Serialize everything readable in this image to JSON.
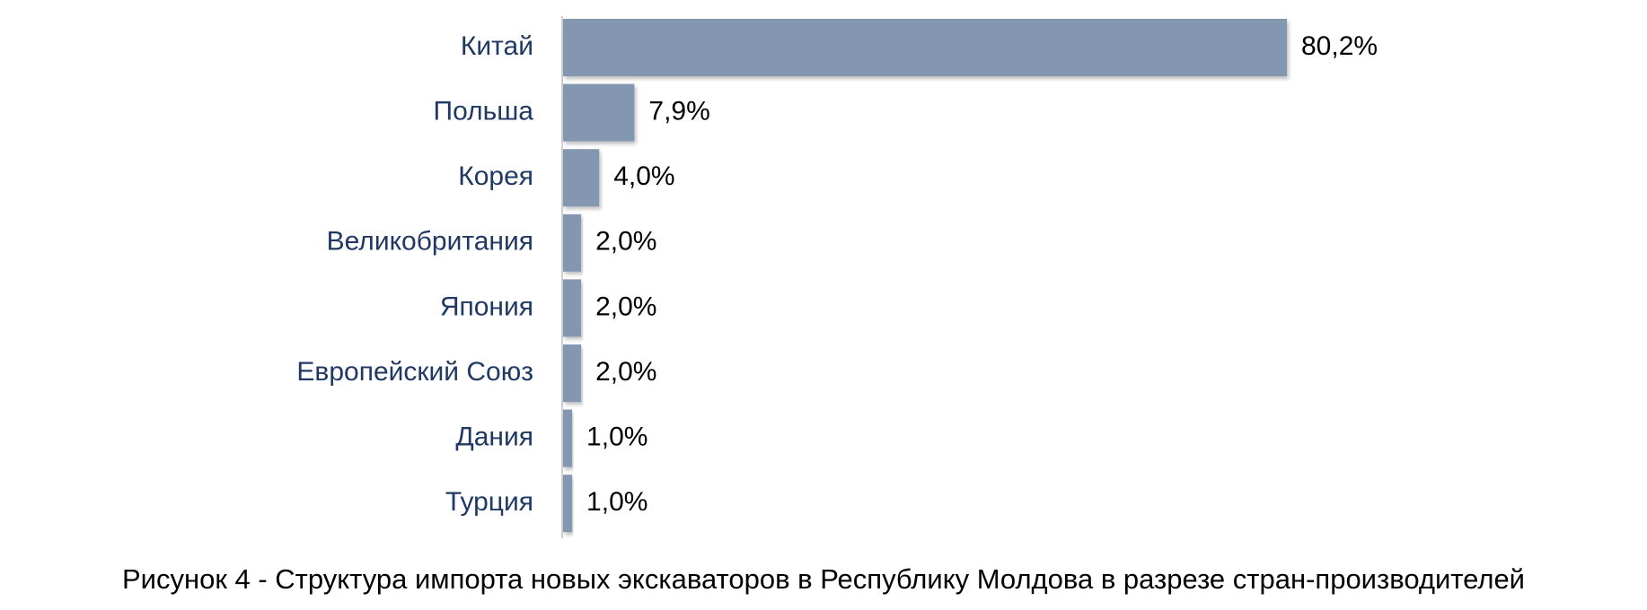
{
  "chart_data": {
    "type": "bar",
    "orientation": "horizontal",
    "categories": [
      "Китай",
      "Польша",
      "Корея",
      "Великобритания",
      "Япония",
      "Европейский Союз",
      "Дания",
      "Турция"
    ],
    "values": [
      80.2,
      7.9,
      4.0,
      2.0,
      2.0,
      2.0,
      1.0,
      1.0
    ],
    "value_labels": [
      "80,2%",
      "7,9%",
      "4,0%",
      "2,0%",
      "2,0%",
      "2,0%",
      "1,0%",
      "1,0%"
    ],
    "color": "#8497b0",
    "caption": "Рисунок 4 - Структура импорта новых экскаваторов в Республику Молдова в разрезе стран-производителей"
  }
}
